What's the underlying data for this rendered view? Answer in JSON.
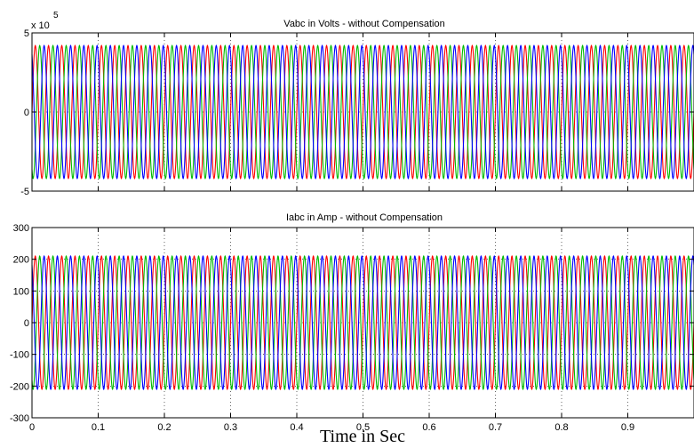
{
  "chart_data": [
    {
      "type": "line",
      "title": "Vabc in Volts - without Compensation",
      "exponent_label": "x 10",
      "exponent_power": "5",
      "y_ticks": [
        -5,
        0,
        5
      ],
      "y_tick_labels": [
        "-5",
        "0",
        "5"
      ],
      "ylim": [
        -5,
        5
      ],
      "xlim": [
        0,
        1
      ],
      "grid": true,
      "waveform": {
        "amplitude": 4.2,
        "frequency_hz": 50,
        "unit_scale": "x 10^5"
      },
      "series": [
        {
          "phase_deg": 0,
          "color": "#ff0000"
        },
        {
          "phase_deg": -120,
          "color": "#00bb00"
        },
        {
          "phase_deg": 120,
          "color": "#0000ff"
        }
      ]
    },
    {
      "type": "line",
      "title": "Iabc in Amp - without Compensation",
      "y_ticks": [
        -300,
        -200,
        -100,
        0,
        100,
        200,
        300
      ],
      "y_tick_labels": [
        "-300",
        "-200",
        "-100",
        "0",
        "100",
        "200",
        "300"
      ],
      "ylim": [
        -300,
        300
      ],
      "xlim": [
        0,
        1
      ],
      "x_ticks": [
        0,
        0.1,
        0.2,
        0.3,
        0.4,
        0.5,
        0.6,
        0.7,
        0.8,
        0.9
      ],
      "x_tick_labels": [
        "0",
        "0.1",
        "0.2",
        "0.3",
        "0.4",
        "0.5",
        "0.6",
        "0.7",
        "0.8",
        "0.9"
      ],
      "xlabel": "Time in Sec",
      "grid": true,
      "waveform": {
        "amplitude": 210,
        "frequency_hz": 50
      },
      "series": [
        {
          "phase_deg": 0,
          "color": "#ff0000"
        },
        {
          "phase_deg": -120,
          "color": "#00bb00"
        },
        {
          "phase_deg": 120,
          "color": "#0000ff"
        }
      ]
    }
  ]
}
